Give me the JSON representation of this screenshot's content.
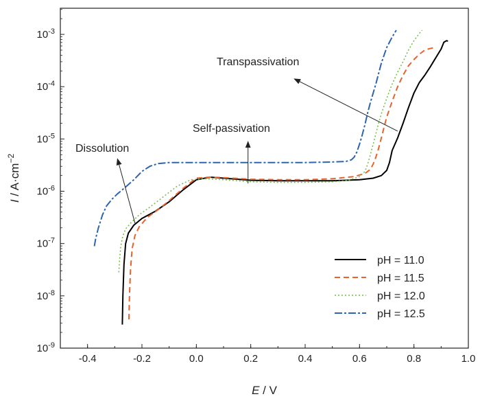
{
  "chart_data": {
    "type": "line",
    "title": "",
    "xlabel_italic": "E",
    "xlabel_rest": " / V",
    "ylabel_italic": "I",
    "ylabel_rest": " / A·cm",
    "ylabel_sup": "−2",
    "xlim": [
      -0.5,
      1.0
    ],
    "ylim_log10": [
      -9,
      -2.5
    ],
    "y_scale": "log",
    "grid": false,
    "legend_position": "bottom-right",
    "x_ticks": [
      -0.4,
      -0.2,
      0.0,
      0.2,
      0.4,
      0.6,
      0.8,
      1.0
    ],
    "x_tick_labels": [
      "-0.4",
      "-0.2",
      "0.0",
      "0.2",
      "0.4",
      "0.6",
      "0.8",
      "1.0"
    ],
    "y_ticks": [
      {
        "base": "10",
        "exp": "-9",
        "value": -9
      },
      {
        "base": "10",
        "exp": "-8",
        "value": -8
      },
      {
        "base": "10",
        "exp": "-7",
        "value": -7
      },
      {
        "base": "10",
        "exp": "-6",
        "value": -6
      },
      {
        "base": "10",
        "exp": "-5",
        "value": -5
      },
      {
        "base": "10",
        "exp": "-4",
        "value": -4
      },
      {
        "base": "10",
        "exp": "-3",
        "value": -3
      }
    ],
    "annotations": [
      {
        "text": "Transpassivation",
        "arrow_from": [
          0.74,
          -4.85
        ],
        "arrow_to": [
          0.36,
          -3.85
        ]
      },
      {
        "text": "Self-passivation",
        "arrow_from": [
          0.19,
          -5.85
        ],
        "arrow_to": [
          0.19,
          -5.05
        ]
      },
      {
        "text": "Dissolution",
        "arrow_from": [
          -0.225,
          -6.62
        ],
        "arrow_to": [
          -0.29,
          -5.38
        ]
      }
    ],
    "series": [
      {
        "name": "pH = 11.0",
        "color": "#000000",
        "dash": "solid",
        "x": [
          -0.272,
          -0.27,
          -0.266,
          -0.26,
          -0.25,
          -0.23,
          -0.2,
          -0.15,
          -0.1,
          -0.05,
          0.0,
          0.05,
          0.1,
          0.2,
          0.3,
          0.4,
          0.5,
          0.6,
          0.65,
          0.68,
          0.7,
          0.71,
          0.72,
          0.74,
          0.76,
          0.78,
          0.8,
          0.82,
          0.84,
          0.86,
          0.88,
          0.9,
          0.91,
          0.92,
          0.925
        ],
        "log10y": [
          -8.55,
          -8.0,
          -7.4,
          -7.0,
          -6.8,
          -6.65,
          -6.52,
          -6.38,
          -6.2,
          -5.98,
          -5.78,
          -5.73,
          -5.75,
          -5.79,
          -5.8,
          -5.8,
          -5.8,
          -5.78,
          -5.75,
          -5.7,
          -5.6,
          -5.45,
          -5.22,
          -4.98,
          -4.7,
          -4.4,
          -4.12,
          -3.92,
          -3.78,
          -3.62,
          -3.45,
          -3.28,
          -3.15,
          -3.12,
          -3.13
        ]
      },
      {
        "name": "pH = 11.5",
        "color": "#e8622c",
        "dash": "8,5",
        "x": [
          -0.248,
          -0.246,
          -0.242,
          -0.236,
          -0.226,
          -0.21,
          -0.18,
          -0.14,
          -0.1,
          -0.05,
          0.0,
          0.05,
          0.1,
          0.2,
          0.3,
          0.4,
          0.5,
          0.58,
          0.62,
          0.64,
          0.65,
          0.66,
          0.67,
          0.68,
          0.69,
          0.7,
          0.72,
          0.74,
          0.76,
          0.78,
          0.8,
          0.82,
          0.84,
          0.86,
          0.87
        ],
        "log10y": [
          -8.45,
          -8.0,
          -7.5,
          -7.1,
          -6.85,
          -6.68,
          -6.5,
          -6.35,
          -6.18,
          -5.95,
          -5.75,
          -5.73,
          -5.74,
          -5.77,
          -5.78,
          -5.78,
          -5.76,
          -5.72,
          -5.66,
          -5.58,
          -5.48,
          -5.35,
          -5.18,
          -4.98,
          -4.78,
          -4.58,
          -4.28,
          -4.0,
          -3.78,
          -3.6,
          -3.48,
          -3.38,
          -3.3,
          -3.27,
          -3.26
        ]
      },
      {
        "name": "pH = 12.0",
        "color": "#6dbf3a",
        "dash": "2,3",
        "x": [
          -0.285,
          -0.282,
          -0.278,
          -0.27,
          -0.26,
          -0.24,
          -0.21,
          -0.17,
          -0.12,
          -0.07,
          -0.02,
          0.03,
          0.1,
          0.2,
          0.3,
          0.4,
          0.5,
          0.56,
          0.6,
          0.62,
          0.63,
          0.64,
          0.65,
          0.66,
          0.67,
          0.68,
          0.7,
          0.72,
          0.74,
          0.76,
          0.78,
          0.8,
          0.82,
          0.83
        ],
        "log10y": [
          -7.55,
          -7.3,
          -7.05,
          -6.85,
          -6.72,
          -6.6,
          -6.45,
          -6.3,
          -6.1,
          -5.9,
          -5.78,
          -5.76,
          -5.78,
          -5.82,
          -5.83,
          -5.83,
          -5.82,
          -5.79,
          -5.72,
          -5.62,
          -5.48,
          -5.3,
          -5.1,
          -4.9,
          -4.7,
          -4.52,
          -4.22,
          -3.95,
          -3.72,
          -3.52,
          -3.3,
          -3.12,
          -2.98,
          -2.92
        ]
      },
      {
        "name": "pH = 12.5",
        "color": "#2e63b0",
        "dash": "11,3,3,3",
        "x": [
          -0.375,
          -0.37,
          -0.36,
          -0.345,
          -0.33,
          -0.31,
          -0.29,
          -0.26,
          -0.23,
          -0.2,
          -0.17,
          -0.14,
          -0.1,
          -0.05,
          0.0,
          0.1,
          0.2,
          0.3,
          0.4,
          0.5,
          0.55,
          0.57,
          0.58,
          0.59,
          0.6,
          0.61,
          0.62,
          0.63,
          0.64,
          0.66,
          0.68,
          0.7,
          0.72,
          0.735
        ],
        "log10y": [
          -7.05,
          -6.9,
          -6.7,
          -6.45,
          -6.28,
          -6.15,
          -6.05,
          -5.92,
          -5.78,
          -5.62,
          -5.52,
          -5.47,
          -5.45,
          -5.45,
          -5.45,
          -5.45,
          -5.45,
          -5.45,
          -5.45,
          -5.44,
          -5.43,
          -5.4,
          -5.35,
          -5.25,
          -5.1,
          -4.92,
          -4.72,
          -4.5,
          -4.3,
          -3.95,
          -3.55,
          -3.25,
          -3.05,
          -2.92
        ]
      }
    ]
  }
}
